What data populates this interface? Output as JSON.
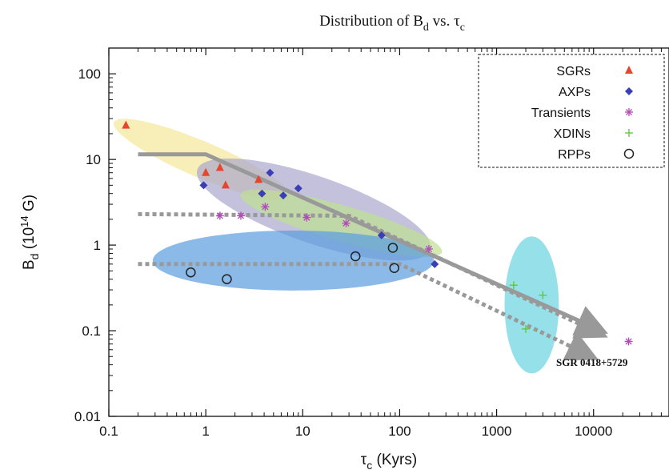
{
  "chart_data": {
    "type": "scatter",
    "title": "Distribution of B_d vs. τ_c",
    "title_main": "Distribution of B",
    "title_sub_d": "d",
    "title_mid": " vs. τ",
    "title_sub_c": "c",
    "xlabel": "τ_c (Kyrs)",
    "xlabel_main": "τ",
    "xlabel_sub": "c",
    "xlabel_rest": " (Kyrs)",
    "ylabel": "B_d (10^14 G)",
    "ylabel_main": "B",
    "ylabel_sub": "d",
    "ylabel_mid": " (10",
    "ylabel_sup": "14",
    "ylabel_rest": " G)",
    "x_scale": "log",
    "y_scale": "log",
    "xlim": [
      0.1,
      60000
    ],
    "ylim": [
      0.01,
      200
    ],
    "x_ticks": [
      0.1,
      1,
      10,
      100,
      1000,
      10000
    ],
    "x_tick_labels": [
      "0.1",
      "1",
      "10",
      "100",
      "1000",
      "10000"
    ],
    "y_ticks": [
      0.01,
      0.1,
      1,
      10,
      100
    ],
    "y_tick_labels": [
      "0.01",
      "0.1",
      "1",
      "10",
      "100"
    ],
    "grid": false,
    "legend_position": "top-right",
    "series": [
      {
        "name": "SGRs",
        "marker": "triangle",
        "color": "#e8452c",
        "points": [
          [
            0.15,
            25
          ],
          [
            1.0,
            7.0
          ],
          [
            1.4,
            8.0
          ],
          [
            1.6,
            5.0
          ],
          [
            3.5,
            5.8
          ]
        ]
      },
      {
        "name": "AXPs",
        "marker": "diamond",
        "color": "#3a3fb5",
        "points": [
          [
            0.95,
            5.0
          ],
          [
            3.8,
            4.0
          ],
          [
            4.6,
            7.0
          ],
          [
            6.3,
            3.8
          ],
          [
            9.0,
            4.6
          ],
          [
            65,
            1.3
          ],
          [
            230,
            0.6
          ]
        ]
      },
      {
        "name": "Transients",
        "marker": "asterisk",
        "color": "#b24bb5",
        "points": [
          [
            1.4,
            2.2
          ],
          [
            2.3,
            2.2
          ],
          [
            4.1,
            2.8
          ],
          [
            11,
            2.1
          ],
          [
            28,
            1.8
          ],
          [
            200,
            0.9
          ],
          [
            23000,
            0.075
          ]
        ]
      },
      {
        "name": "XDINs",
        "marker": "plus",
        "color": "#5dc43a",
        "points": [
          [
            1500,
            0.34
          ],
          [
            2000,
            0.105
          ],
          [
            3000,
            0.26
          ]
        ]
      },
      {
        "name": "RPPs",
        "marker": "circle",
        "color": "#222222",
        "points": [
          [
            0.7,
            0.48
          ],
          [
            1.65,
            0.4
          ],
          [
            35,
            0.74
          ],
          [
            85,
            0.93
          ],
          [
            88,
            0.54
          ]
        ]
      }
    ],
    "trend_lines": [
      {
        "style": "solid",
        "points": [
          [
            0.2,
            11.5
          ],
          [
            1.0,
            11.5
          ],
          [
            10000,
            0.11
          ]
        ]
      },
      {
        "style": "dotted",
        "points": [
          [
            0.2,
            2.3
          ],
          [
            30,
            2.2
          ],
          [
            10000,
            0.1
          ]
        ]
      },
      {
        "style": "dotted",
        "points": [
          [
            0.2,
            0.6
          ],
          [
            100,
            0.6
          ],
          [
            8000,
            0.055
          ]
        ]
      }
    ],
    "shaded_regions": [
      {
        "color": "#f3e79a",
        "cx": 0.9,
        "cy": 10,
        "rx_dex": 0.98,
        "ry_dex": 0.21,
        "angle": 23
      },
      {
        "color": "#aaa6cc",
        "cx": 13,
        "cy": 2.6,
        "rx_dex": 1.27,
        "ry_dex": 0.39,
        "angle": 19
      },
      {
        "color": "#bfdf93",
        "cx": 25,
        "cy": 1.8,
        "rx_dex": 1.08,
        "ry_dex": 0.21,
        "angle": 16
      },
      {
        "color": "#5a9de0",
        "cx": 8,
        "cy": 0.66,
        "rx_dex": 1.45,
        "ry_dex": 0.35,
        "angle": 0
      },
      {
        "color": "#69d3df",
        "cx": 2300,
        "cy": 0.2,
        "rx_dex": 0.28,
        "ry_dex": 0.8,
        "angle": 0
      }
    ],
    "annotation": "SGR 0418+5729"
  }
}
